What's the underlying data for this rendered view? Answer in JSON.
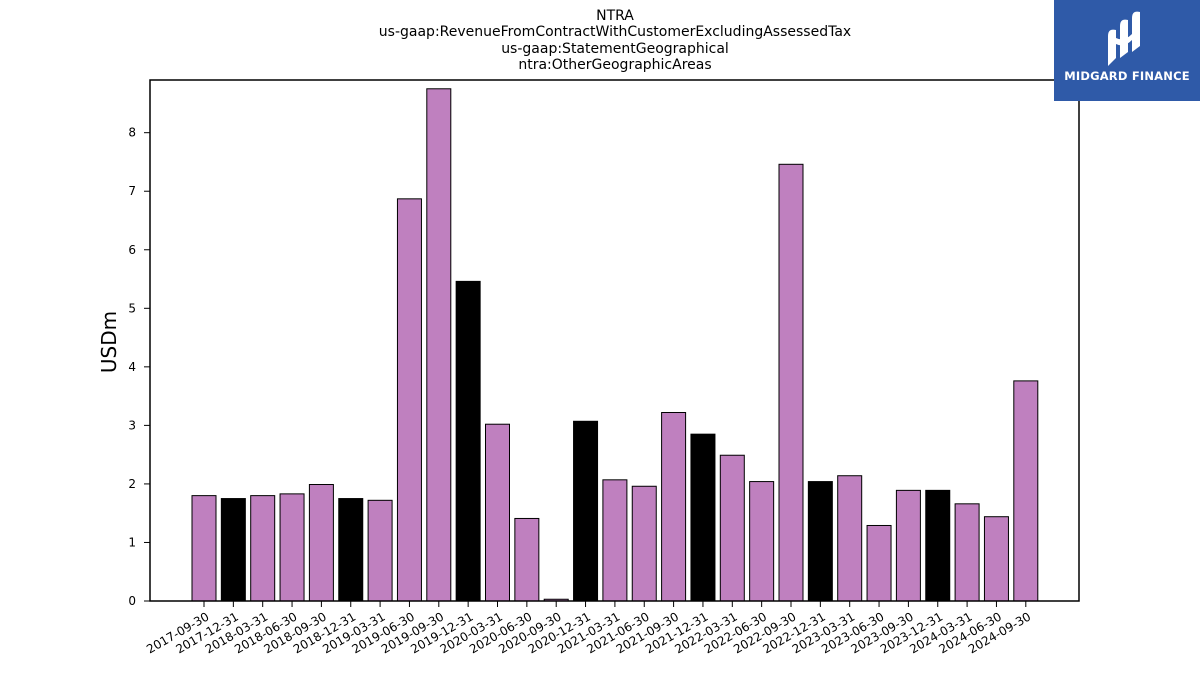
{
  "chart_data": {
    "type": "bar",
    "title_lines": [
      "NTRA",
      "us-gaap:RevenueFromContractWithCustomerExcludingAssessedTax",
      "us-gaap:StatementGeographical",
      "ntra:OtherGeographicAreas"
    ],
    "xlabel": "",
    "ylabel": "USDm",
    "ylim": [
      0,
      8.9
    ],
    "yticks": [
      0,
      1,
      2,
      3,
      4,
      5,
      6,
      7,
      8
    ],
    "grid": false,
    "categories": [
      "2017-09-30",
      "2017-12-31",
      "2018-03-31",
      "2018-06-30",
      "2018-09-30",
      "2018-12-31",
      "2019-03-31",
      "2019-06-30",
      "2019-09-30",
      "2019-12-31",
      "2020-03-31",
      "2020-06-30",
      "2020-09-30",
      "2020-12-31",
      "2021-03-31",
      "2021-06-30",
      "2021-09-30",
      "2021-12-31",
      "2022-03-31",
      "2022-06-30",
      "2022-09-30",
      "2022-12-31",
      "2023-03-31",
      "2023-06-30",
      "2023-09-30",
      "2023-12-31",
      "2024-03-31",
      "2024-06-30",
      "2024-09-30"
    ],
    "values": [
      1.8,
      1.75,
      1.8,
      1.83,
      1.99,
      1.75,
      1.72,
      6.87,
      8.75,
      5.46,
      3.02,
      1.41,
      0.03,
      3.07,
      2.07,
      1.96,
      3.22,
      2.85,
      2.49,
      2.04,
      7.46,
      2.04,
      2.14,
      1.29,
      1.89,
      1.89,
      1.66,
      1.44,
      3.76
    ],
    "colors": {
      "quarter": "#bf80bf",
      "year_end": "#000000",
      "edge": "#000000"
    }
  },
  "logo": {
    "text": "MIDGARD FINANCE",
    "icon": "midgard-logo-icon",
    "background": "#2f5aa8"
  }
}
